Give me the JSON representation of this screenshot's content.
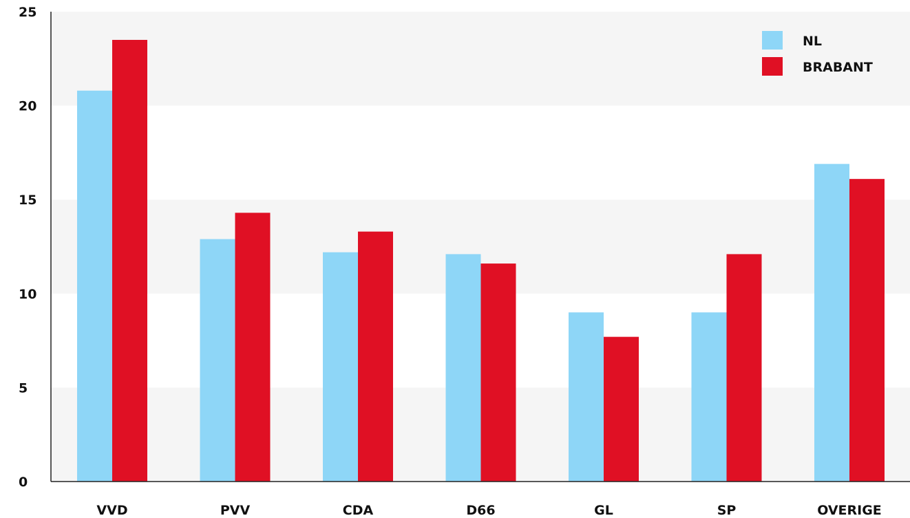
{
  "chart_data": {
    "type": "bar",
    "title": "",
    "xlabel": "",
    "ylabel": "",
    "categories": [
      "VVD",
      "PVV",
      "CDA",
      "D66",
      "GL",
      "SP",
      "OVERIGE"
    ],
    "series": [
      {
        "name": "NL",
        "color": "#8ed6f7",
        "values": [
          20.8,
          12.9,
          12.2,
          12.1,
          9.0,
          9.0,
          16.9
        ]
      },
      {
        "name": "BRABANT",
        "color": "#e01024",
        "values": [
          23.5,
          14.3,
          13.3,
          11.6,
          7.7,
          12.1,
          16.1
        ]
      }
    ],
    "ylim": [
      0,
      25
    ],
    "yticks": [
      "0",
      "5",
      "10",
      "15",
      "20",
      "25"
    ],
    "grid": "alternating horizontal bands",
    "legend_position": "top-right"
  },
  "legend": {
    "items": [
      {
        "label": "NL",
        "color": "#8ed6f7"
      },
      {
        "label": "BRABANT",
        "color": "#e01024"
      }
    ]
  }
}
